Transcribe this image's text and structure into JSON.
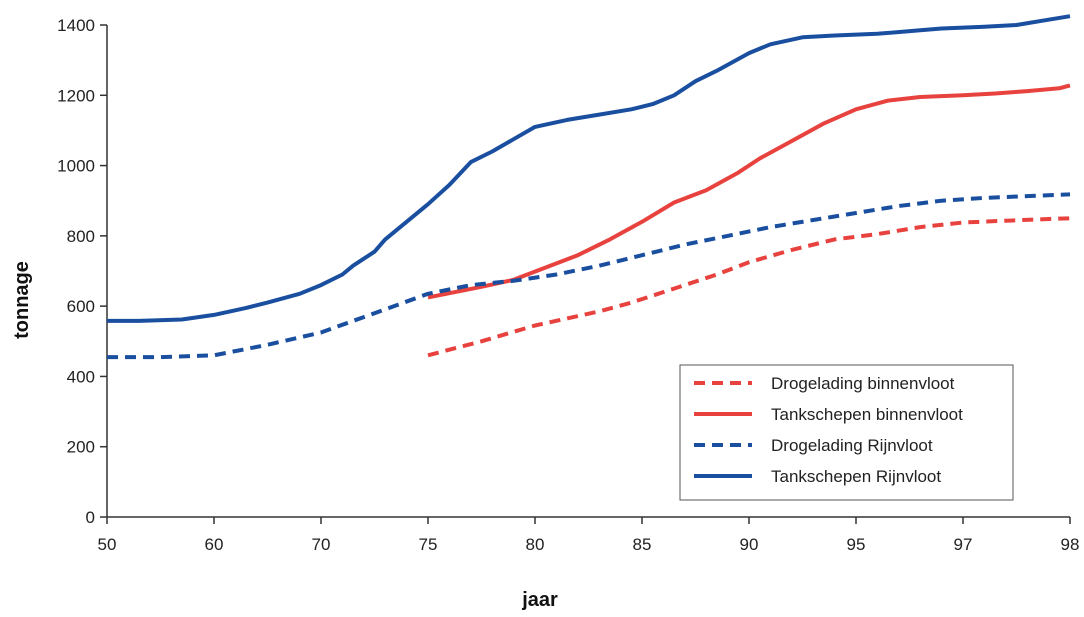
{
  "chart_data": {
    "type": "line",
    "xlabel": "jaar",
    "ylabel": "tonnage",
    "ylim": [
      0,
      1400
    ],
    "yticks": [
      0,
      200,
      400,
      600,
      800,
      1000,
      1200,
      1400
    ],
    "x_tick_labels": [
      "50",
      "60",
      "70",
      "75",
      "80",
      "85",
      "90",
      "95",
      "97",
      "98"
    ],
    "grid": false,
    "legend_position": "bottom-right",
    "series": [
      {
        "name": "Drogelading binnenvloot",
        "color": "#e8423f",
        "dash": "dashed",
        "points": [
          [
            3.0,
            460
          ],
          [
            3.5,
            500
          ],
          [
            4.0,
            545
          ],
          [
            4.3,
            565
          ],
          [
            4.6,
            585
          ],
          [
            4.9,
            610
          ],
          [
            5.3,
            650
          ],
          [
            5.7,
            690
          ],
          [
            6.0,
            725
          ],
          [
            6.4,
            760
          ],
          [
            6.8,
            790
          ],
          [
            7.2,
            805
          ],
          [
            7.6,
            825
          ],
          [
            8.0,
            838
          ],
          [
            8.4,
            843
          ],
          [
            8.8,
            848
          ],
          [
            9.0,
            850
          ]
        ]
      },
      {
        "name": "Tankschepen binnenvloot",
        "color": "#e8423f",
        "dash": "solid",
        "points": [
          [
            3.0,
            625
          ],
          [
            3.5,
            655
          ],
          [
            3.8,
            675
          ],
          [
            4.1,
            710
          ],
          [
            4.4,
            745
          ],
          [
            4.7,
            790
          ],
          [
            5.0,
            840
          ],
          [
            5.3,
            895
          ],
          [
            5.6,
            930
          ],
          [
            5.9,
            980
          ],
          [
            6.1,
            1020
          ],
          [
            6.4,
            1070
          ],
          [
            6.7,
            1120
          ],
          [
            7.0,
            1160
          ],
          [
            7.3,
            1185
          ],
          [
            7.6,
            1195
          ],
          [
            8.0,
            1200
          ],
          [
            8.3,
            1205
          ],
          [
            8.6,
            1212
          ],
          [
            8.9,
            1220
          ],
          [
            9.0,
            1228
          ]
        ]
      },
      {
        "name": "Drogelading Rijnvloot",
        "color": "#1a4fa0",
        "dash": "dashed",
        "points": [
          [
            0.0,
            455
          ],
          [
            0.5,
            455
          ],
          [
            1.0,
            460
          ],
          [
            1.5,
            490
          ],
          [
            2.0,
            525
          ],
          [
            2.5,
            580
          ],
          [
            3.0,
            635
          ],
          [
            3.4,
            660
          ],
          [
            3.8,
            672
          ],
          [
            4.2,
            690
          ],
          [
            4.6,
            715
          ],
          [
            5.0,
            745
          ],
          [
            5.4,
            775
          ],
          [
            5.8,
            800
          ],
          [
            6.2,
            825
          ],
          [
            6.6,
            845
          ],
          [
            7.0,
            865
          ],
          [
            7.4,
            885
          ],
          [
            7.8,
            900
          ],
          [
            8.2,
            908
          ],
          [
            8.6,
            913
          ],
          [
            9.0,
            918
          ]
        ]
      },
      {
        "name": "Tankschepen Rijnvloot",
        "color": "#1a4fa0",
        "dash": "solid",
        "points": [
          [
            0.0,
            558
          ],
          [
            0.3,
            558
          ],
          [
            0.7,
            562
          ],
          [
            1.0,
            575
          ],
          [
            1.3,
            595
          ],
          [
            1.5,
            610
          ],
          [
            1.8,
            635
          ],
          [
            2.0,
            660
          ],
          [
            2.2,
            690
          ],
          [
            2.3,
            715
          ],
          [
            2.5,
            755
          ],
          [
            2.6,
            790
          ],
          [
            2.8,
            840
          ],
          [
            3.0,
            890
          ],
          [
            3.2,
            945
          ],
          [
            3.4,
            1010
          ],
          [
            3.6,
            1040
          ],
          [
            3.8,
            1075
          ],
          [
            4.0,
            1110
          ],
          [
            4.3,
            1130
          ],
          [
            4.6,
            1145
          ],
          [
            4.9,
            1160
          ],
          [
            5.1,
            1175
          ],
          [
            5.3,
            1200
          ],
          [
            5.5,
            1240
          ],
          [
            5.7,
            1270
          ],
          [
            6.0,
            1320
          ],
          [
            6.2,
            1345
          ],
          [
            6.5,
            1365
          ],
          [
            6.8,
            1370
          ],
          [
            7.2,
            1375
          ],
          [
            7.6,
            1385
          ],
          [
            7.8,
            1390
          ],
          [
            8.2,
            1395
          ],
          [
            8.5,
            1400
          ],
          [
            8.8,
            1415
          ],
          [
            9.0,
            1425
          ]
        ]
      }
    ]
  }
}
